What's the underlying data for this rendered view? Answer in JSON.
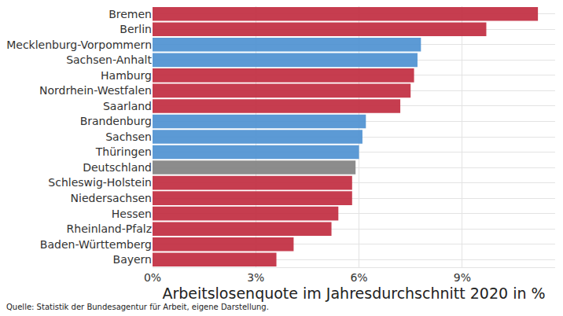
{
  "chart_data": {
    "type": "bar",
    "orientation": "horizontal",
    "categories": [
      "Bremen",
      "Berlin",
      "Mecklenburg-Vorpommern",
      "Sachsen-Anhalt",
      "Hamburg",
      "Nordrhein-Westfalen",
      "Saarland",
      "Brandenburg",
      "Sachsen",
      "Thüringen",
      "Deutschland",
      "Schleswig-Holstein",
      "Niedersachsen",
      "Hessen",
      "Rheinland-Pfalz",
      "Baden-Württemberg",
      "Bayern"
    ],
    "values": [
      11.2,
      9.7,
      7.8,
      7.7,
      7.6,
      7.5,
      7.2,
      6.2,
      6.1,
      6.0,
      5.9,
      5.8,
      5.8,
      5.4,
      5.2,
      4.1,
      3.6
    ],
    "colors": [
      "#c0283c",
      "#c0283c",
      "#4a8fd0",
      "#4a8fd0",
      "#c0283c",
      "#c0283c",
      "#c0283c",
      "#4a8fd0",
      "#4a8fd0",
      "#4a8fd0",
      "#808080",
      "#c0283c",
      "#c0283c",
      "#c0283c",
      "#c0283c",
      "#c0283c",
      "#c0283c"
    ],
    "x_label": "Arbeitslosenquote im Jahresdurchschnitt 2020 in %",
    "xlim": [
      0,
      11.7
    ],
    "xticks": [
      {
        "value": 0,
        "label": "0%"
      },
      {
        "value": 3,
        "label": "3%"
      },
      {
        "value": 6,
        "label": "6%"
      },
      {
        "value": 9,
        "label": "9%"
      }
    ],
    "grid": true,
    "caption": "Quelle: Statistik der Bundesagentur für Arbeit, eigene Darstellung."
  }
}
